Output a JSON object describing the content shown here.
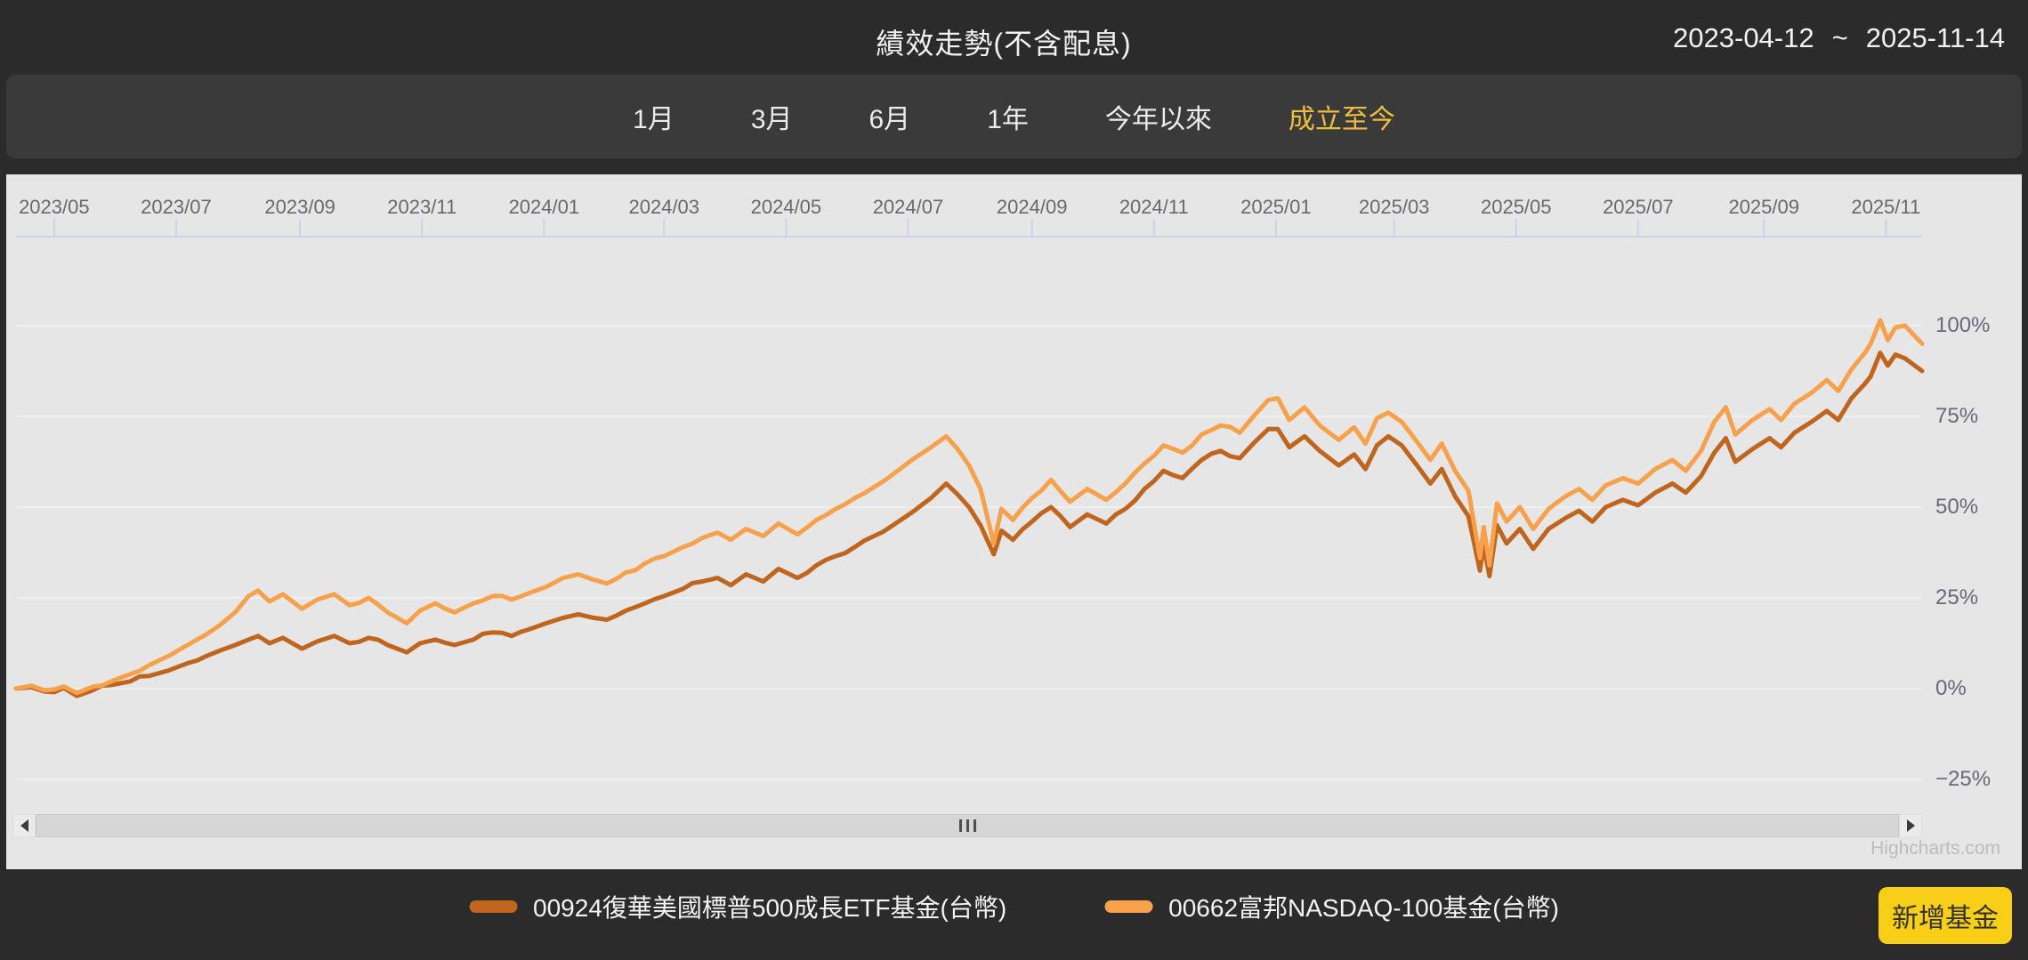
{
  "header": {
    "title": "績效走勢(不含配息)",
    "date_start": "2023-04-12",
    "date_separator": "~",
    "date_end": "2025-11-14"
  },
  "period_tabs": {
    "items": [
      {
        "label": "1月",
        "active": false
      },
      {
        "label": "3月",
        "active": false
      },
      {
        "label": "6月",
        "active": false
      },
      {
        "label": "1年",
        "active": false
      },
      {
        "label": "今年以來",
        "active": false
      },
      {
        "label": "成立至今",
        "active": true
      }
    ],
    "active_color": "#eebf3e"
  },
  "chart_data": {
    "type": "line",
    "title": "績效走勢(不含配息)",
    "x_range": [
      "2023-04-12",
      "2025-11-14"
    ],
    "x_ticks": [
      {
        "pos": 0.02,
        "label": "2023/05"
      },
      {
        "pos": 0.084,
        "label": "2023/07"
      },
      {
        "pos": 0.149,
        "label": "2023/09"
      },
      {
        "pos": 0.213,
        "label": "2023/11"
      },
      {
        "pos": 0.277,
        "label": "2024/01"
      },
      {
        "pos": 0.34,
        "label": "2024/03"
      },
      {
        "pos": 0.404,
        "label": "2024/05"
      },
      {
        "pos": 0.468,
        "label": "2024/07"
      },
      {
        "pos": 0.533,
        "label": "2024/09"
      },
      {
        "pos": 0.597,
        "label": "2024/11"
      },
      {
        "pos": 0.661,
        "label": "2025/01"
      },
      {
        "pos": 0.723,
        "label": "2025/03"
      },
      {
        "pos": 0.787,
        "label": "2025/05"
      },
      {
        "pos": 0.851,
        "label": "2025/07"
      },
      {
        "pos": 0.917,
        "label": "2025/09"
      },
      {
        "pos": 0.981,
        "label": "2025/11"
      }
    ],
    "y_ticks": [
      {
        "value": 100,
        "label": "100%"
      },
      {
        "value": 75,
        "label": "75%"
      },
      {
        "value": 50,
        "label": "50%"
      },
      {
        "value": 25,
        "label": "25%"
      },
      {
        "value": 0,
        "label": "0%"
      },
      {
        "value": -25,
        "label": "−25%"
      }
    ],
    "ylim": [
      -35,
      142
    ],
    "unit": "%",
    "grid": true,
    "legend_position": "bottom",
    "credits": "Highcharts.com",
    "series": [
      {
        "name": "00924復華美國標普500成長ETF基金(台幣)",
        "color": "#c0651d",
        "points": [
          [
            0,
            0
          ],
          [
            0.008,
            0.4
          ],
          [
            0.015,
            -0.8
          ],
          [
            0.025,
            0.2
          ],
          [
            0.032,
            -2
          ],
          [
            0.04,
            -0.5
          ],
          [
            0.05,
            1
          ],
          [
            0.06,
            2
          ],
          [
            0.07,
            3.5
          ],
          [
            0.08,
            5
          ],
          [
            0.09,
            7
          ],
          [
            0.1,
            9
          ],
          [
            0.107,
            10.5
          ],
          [
            0.115,
            12
          ],
          [
            0.122,
            13.5
          ],
          [
            0.127,
            14.5
          ],
          [
            0.133,
            12.5
          ],
          [
            0.14,
            14
          ],
          [
            0.15,
            11
          ],
          [
            0.158,
            13
          ],
          [
            0.167,
            14.5
          ],
          [
            0.175,
            12.5
          ],
          [
            0.185,
            14
          ],
          [
            0.195,
            12
          ],
          [
            0.205,
            10
          ],
          [
            0.212,
            12.5
          ],
          [
            0.22,
            13.5
          ],
          [
            0.23,
            12
          ],
          [
            0.24,
            13.5
          ],
          [
            0.25,
            15.5
          ],
          [
            0.26,
            14.5
          ],
          [
            0.27,
            16.5
          ],
          [
            0.278,
            18
          ],
          [
            0.287,
            19.5
          ],
          [
            0.295,
            20.5
          ],
          [
            0.303,
            19.5
          ],
          [
            0.31,
            19
          ],
          [
            0.32,
            21.5
          ],
          [
            0.33,
            23.5
          ],
          [
            0.34,
            25.5
          ],
          [
            0.35,
            27.5
          ],
          [
            0.36,
            29.5
          ],
          [
            0.368,
            30.5
          ],
          [
            0.375,
            28.5
          ],
          [
            0.383,
            31.5
          ],
          [
            0.392,
            29.5
          ],
          [
            0.4,
            33
          ],
          [
            0.41,
            30.5
          ],
          [
            0.42,
            34
          ],
          [
            0.43,
            36.5
          ],
          [
            0.44,
            39
          ],
          [
            0.45,
            42
          ],
          [
            0.46,
            45
          ],
          [
            0.47,
            48.5
          ],
          [
            0.48,
            52.5
          ],
          [
            0.488,
            56.5
          ],
          [
            0.494,
            53.5
          ],
          [
            0.5,
            50
          ],
          [
            0.506,
            45
          ],
          [
            0.513,
            37
          ],
          [
            0.517,
            43.5
          ],
          [
            0.523,
            41
          ],
          [
            0.533,
            46
          ],
          [
            0.543,
            50
          ],
          [
            0.553,
            44.5
          ],
          [
            0.562,
            48
          ],
          [
            0.572,
            45.5
          ],
          [
            0.582,
            49.5
          ],
          [
            0.592,
            55
          ],
          [
            0.602,
            60
          ],
          [
            0.612,
            58
          ],
          [
            0.622,
            63
          ],
          [
            0.632,
            65.5
          ],
          [
            0.642,
            63.5
          ],
          [
            0.65,
            68
          ],
          [
            0.657,
            71.5
          ],
          [
            0.662,
            71.5
          ],
          [
            0.668,
            66.5
          ],
          [
            0.676,
            69.5
          ],
          [
            0.684,
            65.5
          ],
          [
            0.694,
            61.5
          ],
          [
            0.702,
            64.5
          ],
          [
            0.708,
            60.5
          ],
          [
            0.714,
            67
          ],
          [
            0.72,
            69.5
          ],
          [
            0.727,
            67
          ],
          [
            0.735,
            61.5
          ],
          [
            0.742,
            56.5
          ],
          [
            0.748,
            60.5
          ],
          [
            0.755,
            53
          ],
          [
            0.762,
            47.5
          ],
          [
            0.768,
            32.5
          ],
          [
            0.77,
            39.5
          ],
          [
            0.773,
            31
          ],
          [
            0.777,
            45
          ],
          [
            0.782,
            40
          ],
          [
            0.789,
            44
          ],
          [
            0.796,
            38.5
          ],
          [
            0.804,
            44
          ],
          [
            0.813,
            47
          ],
          [
            0.82,
            49
          ],
          [
            0.827,
            46
          ],
          [
            0.834,
            50
          ],
          [
            0.843,
            52
          ],
          [
            0.851,
            50.5
          ],
          [
            0.86,
            54
          ],
          [
            0.869,
            56.5
          ],
          [
            0.876,
            54
          ],
          [
            0.884,
            58.5
          ],
          [
            0.891,
            65
          ],
          [
            0.897,
            69
          ],
          [
            0.902,
            62.5
          ],
          [
            0.911,
            66
          ],
          [
            0.92,
            69
          ],
          [
            0.926,
            66.5
          ],
          [
            0.933,
            70.5
          ],
          [
            0.942,
            73.5
          ],
          [
            0.95,
            76.5
          ],
          [
            0.956,
            74
          ],
          [
            0.963,
            80
          ],
          [
            0.97,
            84
          ],
          [
            0.973,
            86
          ],
          [
            0.978,
            92.5
          ],
          [
            0.982,
            89
          ],
          [
            0.986,
            92
          ],
          [
            0.991,
            91
          ],
          [
            1,
            87.5
          ]
        ]
      },
      {
        "name": "00662富邦NASDAQ-100基金(台幣)",
        "color": "#f7a14c",
        "points": [
          [
            0,
            0
          ],
          [
            0.008,
            0.8
          ],
          [
            0.015,
            -0.5
          ],
          [
            0.025,
            0.6
          ],
          [
            0.032,
            -1.2
          ],
          [
            0.04,
            0.5
          ],
          [
            0.05,
            2
          ],
          [
            0.06,
            4
          ],
          [
            0.07,
            6.5
          ],
          [
            0.08,
            9
          ],
          [
            0.09,
            12
          ],
          [
            0.1,
            15
          ],
          [
            0.107,
            17.5
          ],
          [
            0.115,
            21
          ],
          [
            0.122,
            25.5
          ],
          [
            0.127,
            27
          ],
          [
            0.133,
            24
          ],
          [
            0.14,
            26
          ],
          [
            0.15,
            22
          ],
          [
            0.158,
            24.5
          ],
          [
            0.167,
            26
          ],
          [
            0.175,
            23
          ],
          [
            0.185,
            25
          ],
          [
            0.195,
            21
          ],
          [
            0.205,
            18
          ],
          [
            0.212,
            21.5
          ],
          [
            0.22,
            23.5
          ],
          [
            0.23,
            21
          ],
          [
            0.24,
            23.5
          ],
          [
            0.25,
            25.5
          ],
          [
            0.26,
            24.5
          ],
          [
            0.27,
            26.5
          ],
          [
            0.278,
            28
          ],
          [
            0.287,
            30.5
          ],
          [
            0.295,
            31.5
          ],
          [
            0.303,
            30
          ],
          [
            0.31,
            29
          ],
          [
            0.32,
            32
          ],
          [
            0.33,
            34.5
          ],
          [
            0.34,
            36.5
          ],
          [
            0.35,
            39
          ],
          [
            0.36,
            41.5
          ],
          [
            0.368,
            43
          ],
          [
            0.375,
            41
          ],
          [
            0.383,
            44
          ],
          [
            0.392,
            42
          ],
          [
            0.4,
            45.5
          ],
          [
            0.41,
            42.5
          ],
          [
            0.42,
            46.5
          ],
          [
            0.43,
            49.5
          ],
          [
            0.44,
            52.5
          ],
          [
            0.45,
            55.5
          ],
          [
            0.46,
            59
          ],
          [
            0.47,
            63
          ],
          [
            0.48,
            66.5
          ],
          [
            0.488,
            69.5
          ],
          [
            0.494,
            66
          ],
          [
            0.5,
            61.5
          ],
          [
            0.506,
            55
          ],
          [
            0.513,
            40
          ],
          [
            0.517,
            49.5
          ],
          [
            0.523,
            46.5
          ],
          [
            0.533,
            52.5
          ],
          [
            0.543,
            57.5
          ],
          [
            0.553,
            51.5
          ],
          [
            0.562,
            55
          ],
          [
            0.572,
            52
          ],
          [
            0.582,
            56.5
          ],
          [
            0.592,
            62
          ],
          [
            0.602,
            67
          ],
          [
            0.612,
            65
          ],
          [
            0.622,
            70
          ],
          [
            0.632,
            72.5
          ],
          [
            0.642,
            70.5
          ],
          [
            0.65,
            75.5
          ],
          [
            0.657,
            79.5
          ],
          [
            0.662,
            80
          ],
          [
            0.668,
            74
          ],
          [
            0.676,
            77.5
          ],
          [
            0.684,
            72.5
          ],
          [
            0.694,
            68.5
          ],
          [
            0.702,
            72
          ],
          [
            0.708,
            67.5
          ],
          [
            0.714,
            74.5
          ],
          [
            0.72,
            76
          ],
          [
            0.727,
            73.5
          ],
          [
            0.735,
            68
          ],
          [
            0.742,
            63
          ],
          [
            0.748,
            67.5
          ],
          [
            0.755,
            60
          ],
          [
            0.762,
            54.5
          ],
          [
            0.768,
            36
          ],
          [
            0.77,
            44.5
          ],
          [
            0.773,
            34
          ],
          [
            0.777,
            51
          ],
          [
            0.782,
            46
          ],
          [
            0.789,
            50
          ],
          [
            0.796,
            44
          ],
          [
            0.804,
            49.5
          ],
          [
            0.813,
            53
          ],
          [
            0.82,
            55
          ],
          [
            0.827,
            52
          ],
          [
            0.834,
            56
          ],
          [
            0.843,
            58
          ],
          [
            0.851,
            56.5
          ],
          [
            0.86,
            60.5
          ],
          [
            0.869,
            63
          ],
          [
            0.876,
            60
          ],
          [
            0.884,
            65.5
          ],
          [
            0.891,
            73.5
          ],
          [
            0.897,
            77.5
          ],
          [
            0.902,
            70
          ],
          [
            0.911,
            74
          ],
          [
            0.92,
            77
          ],
          [
            0.926,
            74
          ],
          [
            0.933,
            78.5
          ],
          [
            0.942,
            81.5
          ],
          [
            0.95,
            85
          ],
          [
            0.956,
            82
          ],
          [
            0.963,
            88
          ],
          [
            0.97,
            92.5
          ],
          [
            0.973,
            95
          ],
          [
            0.978,
            101.5
          ],
          [
            0.982,
            96
          ],
          [
            0.986,
            99.5
          ],
          [
            0.991,
            100
          ],
          [
            1,
            95
          ]
        ]
      }
    ]
  },
  "scrollbar": {
    "left_arrow": "left",
    "right_arrow": "right",
    "grip_bars": 3
  },
  "footer": {
    "add_fund_button": "新增基金"
  }
}
